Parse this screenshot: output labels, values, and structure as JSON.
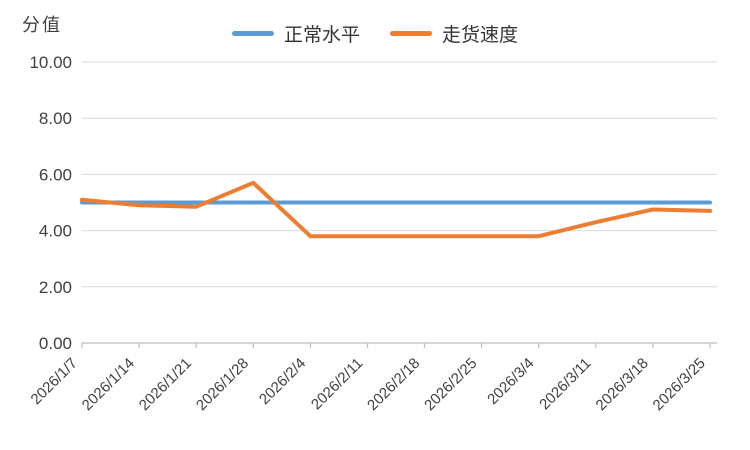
{
  "chart_data": {
    "type": "line",
    "title": "分值",
    "categories": [
      "2026/1/7",
      "2026/1/14",
      "2026/1/21",
      "2026/1/28",
      "2026/2/4",
      "2026/2/11",
      "2026/2/18",
      "2026/2/25",
      "2026/3/4",
      "2026/3/11",
      "2026/3/18",
      "2026/3/25"
    ],
    "series": [
      {
        "name": "正常水平",
        "color": "#5B9BD5",
        "values": [
          5.0,
          5.0,
          5.0,
          5.0,
          5.0,
          5.0,
          5.0,
          5.0,
          5.0,
          5.0,
          5.0,
          5.0
        ]
      },
      {
        "name": "走货速度",
        "color": "#ED7D31",
        "values": [
          5.1,
          4.9,
          4.85,
          5.7,
          3.8,
          3.8,
          3.8,
          3.8,
          3.8,
          4.3,
          4.75,
          4.7
        ]
      }
    ],
    "ylim": [
      0,
      10
    ],
    "yticks": [
      {
        "value": 0,
        "label": "0.00"
      },
      {
        "value": 2,
        "label": "2.00"
      },
      {
        "value": 4,
        "label": "4.00"
      },
      {
        "value": 6,
        "label": "6.00"
      },
      {
        "value": 8,
        "label": "8.00"
      },
      {
        "value": 10,
        "label": "10.00"
      }
    ],
    "grid": true,
    "legend_position": "top",
    "background": "#ffffff",
    "gridline_color": "#d9d9d9",
    "axis_color": "#bfbfbf",
    "text_color": "#404040"
  }
}
